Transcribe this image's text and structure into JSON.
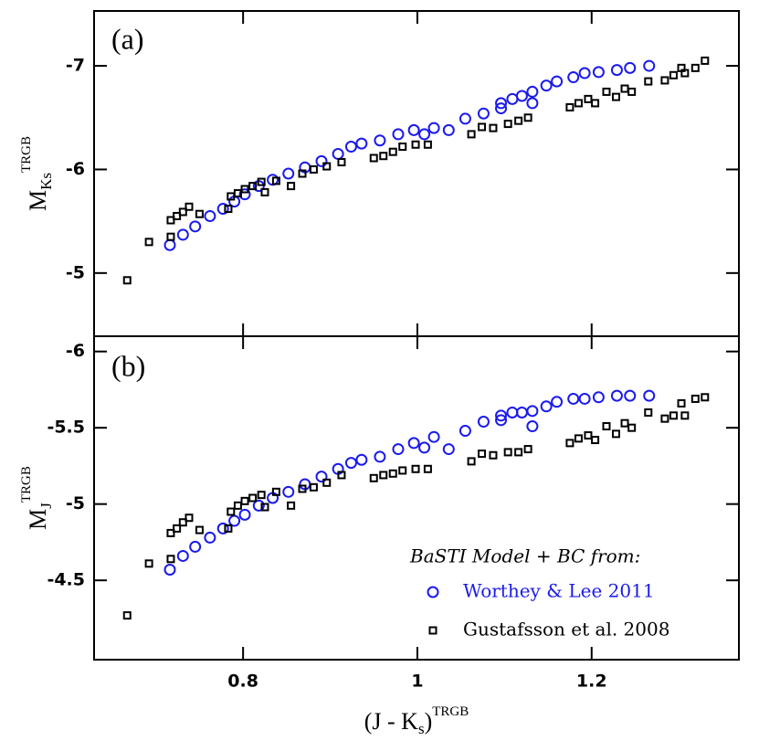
{
  "chart_data": [
    {
      "type": "scatter",
      "panel_label": "(a)",
      "ylabel": {
        "text": "M",
        "sub": "Ks",
        "sup": "TRGB"
      },
      "xlim": [
        0.629,
        1.369
      ],
      "ylim": [
        -4.39,
        -7.53
      ],
      "yticks": [
        -7,
        -6,
        -5
      ],
      "series": [
        {
          "color": "#1a1aee",
          "marker": "circle",
          "x": [
            0.716,
            0.731,
            0.745,
            0.762,
            0.777,
            0.79,
            0.802,
            0.818,
            0.834,
            0.852,
            0.871,
            0.89,
            0.909,
            0.924,
            0.936,
            0.957,
            0.978,
            0.996,
            1.008,
            1.019,
            1.036,
            1.055,
            1.076,
            1.096,
            1.109,
            1.12,
            1.132,
            1.148,
            1.16,
            1.179,
            1.192,
            1.208,
            1.229,
            1.244,
            1.266,
            1.096,
            1.132
          ],
          "values": [
            -5.27,
            -5.37,
            -5.45,
            -5.55,
            -5.62,
            -5.69,
            -5.76,
            -5.84,
            -5.9,
            -5.96,
            -6.02,
            -6.08,
            -6.15,
            -6.22,
            -6.25,
            -6.28,
            -6.34,
            -6.38,
            -6.34,
            -6.4,
            -6.38,
            -6.49,
            -6.54,
            -6.64,
            -6.68,
            -6.71,
            -6.75,
            -6.81,
            -6.85,
            -6.89,
            -6.93,
            -6.94,
            -6.96,
            -6.98,
            -7.0,
            -6.59,
            -6.64
          ]
        },
        {
          "color": "#000000",
          "marker": "square",
          "x": [
            0.667,
            0.692,
            0.717,
            0.717,
            0.724,
            0.731,
            0.738,
            0.75,
            0.783,
            0.786,
            0.794,
            0.802,
            0.811,
            0.821,
            0.825,
            0.838,
            0.855,
            0.868,
            0.881,
            0.896,
            0.913,
            0.95,
            0.961,
            0.972,
            0.983,
            0.998,
            1.012,
            1.062,
            1.074,
            1.087,
            1.104,
            1.116,
            1.127,
            1.175,
            1.185,
            1.196,
            1.204,
            1.217,
            1.228,
            1.238,
            1.246,
            1.265,
            1.284,
            1.294,
            1.303,
            1.307,
            1.319,
            1.33
          ],
          "values": [
            -4.93,
            -5.3,
            -5.51,
            -5.35,
            -5.55,
            -5.59,
            -5.64,
            -5.57,
            -5.62,
            -5.74,
            -5.77,
            -5.81,
            -5.84,
            -5.88,
            -5.78,
            -5.89,
            -5.84,
            -5.96,
            -6.0,
            -6.03,
            -6.07,
            -6.11,
            -6.13,
            -6.17,
            -6.22,
            -6.24,
            -6.24,
            -6.34,
            -6.41,
            -6.4,
            -6.44,
            -6.47,
            -6.5,
            -6.6,
            -6.64,
            -6.68,
            -6.64,
            -6.75,
            -6.7,
            -6.78,
            -6.75,
            -6.85,
            -6.86,
            -6.91,
            -6.98,
            -6.93,
            -6.98,
            -7.05
          ]
        }
      ]
    },
    {
      "type": "scatter",
      "panel_label": "(b)",
      "ylabel": {
        "text": "M",
        "sub": "J",
        "sup": "TRGB"
      },
      "xlabel": {
        "pre": "(J - K",
        "sub": "s",
        "post": ")",
        "sup": "TRGB"
      },
      "xlim": [
        0.629,
        1.369
      ],
      "xticks": [
        0.8,
        1,
        1.2
      ],
      "ylim": [
        -3.98,
        -6.1
      ],
      "yticks": [
        -6,
        -5.5,
        -5,
        -4.5
      ],
      "legend": "lower right",
      "legend_title": "BaSTI Model + BC from:",
      "series": [
        {
          "name": "Worthey & Lee 2011",
          "color": "#1a1aee",
          "marker": "circle",
          "x": [
            0.716,
            0.731,
            0.745,
            0.762,
            0.777,
            0.79,
            0.802,
            0.818,
            0.834,
            0.852,
            0.871,
            0.89,
            0.909,
            0.924,
            0.936,
            0.957,
            0.978,
            0.996,
            1.008,
            1.019,
            1.036,
            1.055,
            1.076,
            1.096,
            1.109,
            1.12,
            1.132,
            1.148,
            1.16,
            1.179,
            1.192,
            1.208,
            1.229,
            1.244,
            1.266,
            1.096,
            1.132
          ],
          "values": [
            -4.57,
            -4.66,
            -4.72,
            -4.78,
            -4.84,
            -4.89,
            -4.93,
            -4.99,
            -5.04,
            -5.08,
            -5.13,
            -5.18,
            -5.23,
            -5.27,
            -5.29,
            -5.31,
            -5.36,
            -5.4,
            -5.37,
            -5.44,
            -5.36,
            -5.48,
            -5.54,
            -5.58,
            -5.6,
            -5.6,
            -5.61,
            -5.64,
            -5.67,
            -5.69,
            -5.69,
            -5.7,
            -5.71,
            -5.71,
            -5.71,
            -5.55,
            -5.51
          ]
        },
        {
          "name": "Gustafsson et al. 2008",
          "color": "#000000",
          "marker": "square",
          "x": [
            0.667,
            0.692,
            0.717,
            0.717,
            0.724,
            0.731,
            0.738,
            0.75,
            0.783,
            0.786,
            0.794,
            0.802,
            0.811,
            0.821,
            0.825,
            0.838,
            0.855,
            0.868,
            0.881,
            0.896,
            0.913,
            0.95,
            0.961,
            0.972,
            0.983,
            0.998,
            1.012,
            1.062,
            1.074,
            1.087,
            1.104,
            1.116,
            1.127,
            1.175,
            1.185,
            1.196,
            1.204,
            1.217,
            1.228,
            1.238,
            1.246,
            1.265,
            1.284,
            1.294,
            1.303,
            1.307,
            1.319,
            1.33
          ],
          "values": [
            -4.27,
            -4.61,
            -4.81,
            -4.64,
            -4.84,
            -4.88,
            -4.91,
            -4.83,
            -4.84,
            -4.95,
            -4.99,
            -5.02,
            -5.04,
            -5.06,
            -4.98,
            -5.08,
            -4.99,
            -5.1,
            -5.11,
            -5.14,
            -5.19,
            -5.17,
            -5.19,
            -5.2,
            -5.22,
            -5.23,
            -5.23,
            -5.28,
            -5.33,
            -5.32,
            -5.34,
            -5.34,
            -5.36,
            -5.4,
            -5.43,
            -5.45,
            -5.42,
            -5.51,
            -5.46,
            -5.53,
            -5.5,
            -5.6,
            -5.56,
            -5.58,
            -5.66,
            -5.58,
            -5.69,
            -5.7
          ]
        }
      ]
    }
  ]
}
